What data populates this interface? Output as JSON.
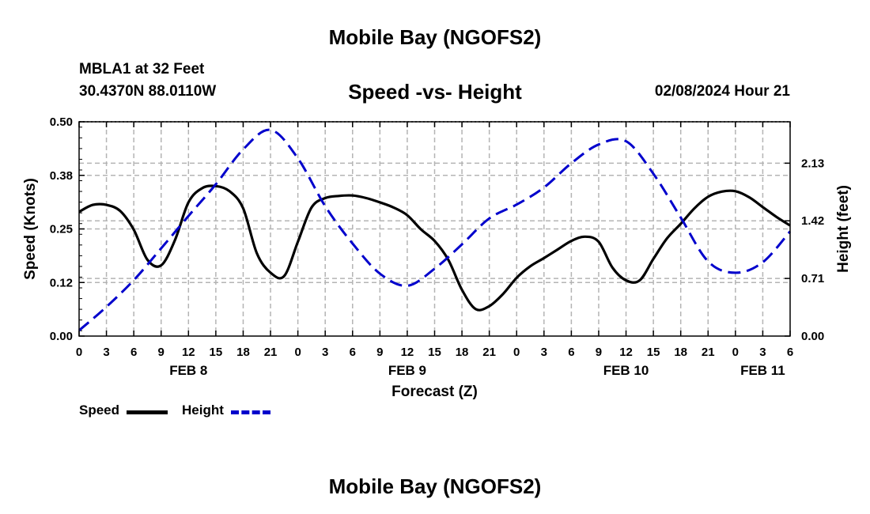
{
  "page": {
    "title": "Mobile Bay (NGOFS2)",
    "footer_title": "Mobile Bay (NGOFS2)",
    "station": "MBLA1 at 32 Feet",
    "coordinates": "30.4370N  88.0110W",
    "subtitle": "Speed -vs- Height",
    "datetime": "02/08/2024 Hour 21"
  },
  "colors": {
    "speed": "#000000",
    "height": "#0000cc",
    "grid": "#b4b4b4"
  },
  "chart_data": {
    "type": "line",
    "title": "Speed -vs- Height",
    "xlabel": "Forecast (Z)",
    "ylabel": "Speed (Knots)",
    "y2label": "Height (feet)",
    "ylim": [
      0,
      0.5
    ],
    "y2lim": [
      0,
      2.64
    ],
    "grid": true,
    "x_unit": "hours from 2024-02-08 00Z",
    "xlim": [
      0,
      78
    ],
    "x_ticks": [
      0,
      3,
      6,
      9,
      12,
      15,
      18,
      21,
      24,
      27,
      30,
      33,
      36,
      39,
      42,
      45,
      48,
      51,
      54,
      57,
      60,
      63,
      66,
      69,
      72,
      75,
      78
    ],
    "x_tick_labels": [
      "0",
      "3",
      "6",
      "9",
      "12",
      "15",
      "18",
      "21",
      "0",
      "3",
      "6",
      "9",
      "12",
      "15",
      "18",
      "21",
      "0",
      "3",
      "6",
      "9",
      "12",
      "15",
      "18",
      "21",
      "0",
      "3",
      "6"
    ],
    "date_labels": [
      {
        "x": 12,
        "label": "FEB 8"
      },
      {
        "x": 36,
        "label": "FEB 9"
      },
      {
        "x": 60,
        "label": "FEB 10"
      },
      {
        "x": 75,
        "label": "FEB 11"
      }
    ],
    "y_ticks": [
      0.0,
      0.125,
      0.25,
      0.375,
      0.5
    ],
    "y_tick_labels": [
      "0.00",
      "0.12",
      "0.25",
      "0.38",
      "0.50"
    ],
    "y2_ticks": [
      0.0,
      0.71,
      1.42,
      2.13
    ],
    "y2_tick_labels": [
      "0.00",
      "0.71",
      "1.42",
      "2.13"
    ],
    "legend": "bottom-left",
    "series": [
      {
        "name": "Speed",
        "axis": "left",
        "style": "solid",
        "x": [
          0,
          1.5,
          3,
          4.5,
          6,
          7.5,
          9,
          10.5,
          12,
          13.5,
          15,
          16.5,
          18,
          19.5,
          21,
          22.5,
          24,
          25.5,
          27,
          28.5,
          30,
          31.5,
          33,
          34.5,
          36,
          37.5,
          39,
          40.5,
          42,
          43.5,
          45,
          46.5,
          48,
          49.5,
          51,
          52.5,
          54,
          55.5,
          57,
          58.5,
          60,
          61.5,
          63,
          64.5,
          66,
          67.5,
          69,
          70.5,
          72,
          73.5,
          75,
          76.5,
          78
        ],
        "values": [
          0.29,
          0.306,
          0.306,
          0.292,
          0.248,
          0.178,
          0.165,
          0.223,
          0.312,
          0.345,
          0.35,
          0.338,
          0.298,
          0.193,
          0.148,
          0.14,
          0.22,
          0.3,
          0.322,
          0.327,
          0.328,
          0.322,
          0.312,
          0.3,
          0.282,
          0.249,
          0.222,
          0.178,
          0.108,
          0.063,
          0.07,
          0.098,
          0.136,
          0.163,
          0.182,
          0.202,
          0.222,
          0.232,
          0.22,
          0.16,
          0.13,
          0.13,
          0.18,
          0.228,
          0.262,
          0.298,
          0.325,
          0.337,
          0.338,
          0.324,
          0.301,
          0.278,
          0.258
        ]
      },
      {
        "name": "Height",
        "axis": "right",
        "style": "dashed",
        "x": [
          0,
          3,
          6,
          9,
          12,
          15,
          18,
          21,
          24,
          27,
          30,
          33,
          36,
          39,
          42,
          45,
          48,
          51,
          54,
          57,
          60,
          63,
          66,
          69,
          72,
          75,
          78
        ],
        "values": [
          0.07,
          0.36,
          0.69,
          1.08,
          1.48,
          1.87,
          2.3,
          2.54,
          2.19,
          1.6,
          1.14,
          0.77,
          0.62,
          0.83,
          1.13,
          1.45,
          1.62,
          1.83,
          2.13,
          2.36,
          2.4,
          2.0,
          1.46,
          0.92,
          0.78,
          0.91,
          1.29
        ]
      }
    ]
  },
  "legend_items": [
    {
      "label": "Speed"
    },
    {
      "label": "Height"
    }
  ]
}
